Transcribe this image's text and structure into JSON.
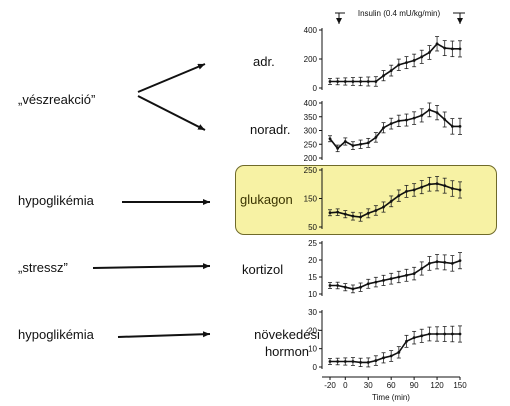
{
  "labels": {
    "stress_reaction": "„vészreakció”",
    "hypoglycemia_1": "hypoglikémia",
    "stress": "„stressz”",
    "hypoglycemia_2": "hypoglikémia",
    "adrenaline": "adr.",
    "noradrenaline": "noradr.",
    "glucagon": "glukagon",
    "cortisol": "kortizol",
    "growth_hormone": "növekedési hormon"
  },
  "insulin_label": "Insulin (0.4 mU/kg/min)",
  "x_axis": {
    "title": "Time (min)",
    "ticks": [
      "-20",
      "0",
      "30",
      "60",
      "90",
      "120",
      "150"
    ]
  },
  "highlight_color": "#f7f2a4",
  "chart_data": [
    {
      "type": "line",
      "name": "adr.",
      "x": [
        -20,
        -10,
        0,
        10,
        20,
        30,
        40,
        50,
        60,
        70,
        80,
        90,
        100,
        110,
        120,
        130,
        140,
        150
      ],
      "y": [
        45,
        45,
        45,
        45,
        45,
        45,
        45,
        85,
        120,
        160,
        175,
        190,
        215,
        245,
        305,
        275,
        270,
        270
      ],
      "yticks": [
        "0",
        "200",
        "400"
      ],
      "ylim": [
        0,
        400
      ]
    },
    {
      "type": "line",
      "name": "noradr.",
      "x": [
        -20,
        -10,
        0,
        10,
        20,
        30,
        40,
        50,
        60,
        70,
        80,
        90,
        100,
        110,
        120,
        130,
        140,
        150
      ],
      "y": [
        270,
        235,
        260,
        245,
        250,
        255,
        275,
        310,
        325,
        335,
        338,
        345,
        355,
        375,
        365,
        340,
        315,
        315
      ],
      "yticks": [
        "200",
        "250",
        "300",
        "350",
        "400"
      ],
      "ylim": [
        200,
        400
      ]
    },
    {
      "type": "line",
      "name": "glukagon",
      "x": [
        -20,
        -10,
        0,
        10,
        20,
        30,
        40,
        50,
        60,
        70,
        80,
        90,
        100,
        110,
        120,
        130,
        140,
        150
      ],
      "y": [
        100,
        102,
        95,
        88,
        85,
        98,
        108,
        120,
        140,
        160,
        175,
        180,
        190,
        200,
        202,
        195,
        185,
        180
      ],
      "yticks": [
        "50",
        "150",
        "250"
      ],
      "ylim": [
        50,
        250
      ]
    },
    {
      "type": "line",
      "name": "kortizol",
      "x": [
        -20,
        -10,
        0,
        10,
        20,
        30,
        40,
        50,
        60,
        70,
        80,
        90,
        100,
        110,
        120,
        130,
        140,
        150
      ],
      "y": [
        12.5,
        12.5,
        12,
        11.5,
        12,
        13,
        13.5,
        14,
        14.5,
        15,
        15.5,
        16,
        17.5,
        19,
        19.5,
        19.3,
        19,
        19.8
      ],
      "yticks": [
        "10",
        "15",
        "20",
        "25"
      ],
      "ylim": [
        10,
        25
      ]
    },
    {
      "type": "line",
      "name": "növekedési hormon",
      "x": [
        -20,
        -10,
        0,
        10,
        20,
        30,
        40,
        50,
        60,
        70,
        80,
        90,
        100,
        110,
        120,
        130,
        140,
        150
      ],
      "y": [
        3,
        3,
        3,
        3,
        2.5,
        2.5,
        3.5,
        5,
        6,
        8,
        14,
        16,
        17,
        18,
        18,
        18,
        18,
        18
      ],
      "yticks": [
        "0",
        "10",
        "20",
        "30"
      ],
      "ylim": [
        0,
        30
      ]
    }
  ]
}
